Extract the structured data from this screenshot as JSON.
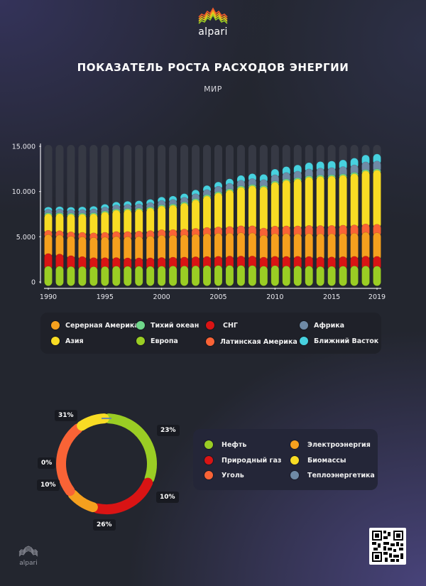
{
  "brand": {
    "name": "alpari",
    "footer_name": "alpari"
  },
  "header": {
    "title": "ПОКАЗАТЕЛЬ РОСТА РАСХОДОВ ЭНЕРГИИ",
    "subtitle": "МИР"
  },
  "colors": {
    "europe": "#9acd24",
    "cis": "#d91414",
    "north_america": "#f5a01e",
    "latin_america": "#f96336",
    "asia": "#f8dc24",
    "pacific": "#6fd78a",
    "africa": "#6f8aa5",
    "middle_east": "#47d1df",
    "track": "#363944"
  },
  "legend_regions": [
    {
      "label": "Серерная Америка",
      "key": "north_america",
      "color": "#f5a01e"
    },
    {
      "label": "Азия",
      "key": "asia",
      "color": "#f8dc24"
    },
    {
      "label": "Тихий океан",
      "key": "pacific",
      "color": "#6fd78a"
    },
    {
      "label": "Европа",
      "key": "europe",
      "color": "#9acd24"
    },
    {
      "label": "СНГ",
      "key": "cis",
      "color": "#d91414"
    },
    {
      "label": "Латинская Америка",
      "key": "latin_america",
      "color": "#f96336"
    },
    {
      "label": "Африка",
      "key": "africa",
      "color": "#6f8aa5"
    },
    {
      "label": "Ближний Васток",
      "key": "middle_east",
      "color": "#47d1df"
    }
  ],
  "legend_sources": [
    {
      "label": "Нефть",
      "color": "#9acd24"
    },
    {
      "label": "Природный газ",
      "color": "#d91414"
    },
    {
      "label": "Уголь",
      "color": "#f96336"
    },
    {
      "label": "Электроэнергия",
      "color": "#f5a01e"
    },
    {
      "label": "Биомассы",
      "color": "#f8dc24"
    },
    {
      "label": "Теплоэнергетика",
      "color": "#6f8aa5"
    }
  ],
  "chart_data": [
    {
      "type": "bar",
      "stacked": true,
      "title": "ПОКАЗАТЕЛЬ РОСТА РАСХОДОВ ЭНЕРГИИ",
      "subtitle": "МИР",
      "xlabel": "",
      "ylabel": "",
      "ylim": [
        0,
        15000
      ],
      "yticks": [
        0,
        5000,
        10000,
        15000
      ],
      "ytick_labels": [
        "0",
        "5.000",
        "10.000",
        "15.000"
      ],
      "xtick_labels": [
        "1990",
        "1995",
        "2000",
        "2005",
        "2010",
        "2015",
        "2019"
      ],
      "categories": [
        "1990",
        "1991",
        "1992",
        "1993",
        "1994",
        "1995",
        "1996",
        "1997",
        "1998",
        "1999",
        "2000",
        "2001",
        "2002",
        "2003",
        "2004",
        "2005",
        "2006",
        "2007",
        "2008",
        "2009",
        "2010",
        "2011",
        "2012",
        "2013",
        "2014",
        "2015",
        "2016",
        "2017",
        "2018",
        "2019"
      ],
      "series": [
        {
          "name": "Европа",
          "key": "europe",
          "values": [
            1750,
            1750,
            1720,
            1720,
            1700,
            1720,
            1760,
            1740,
            1750,
            1740,
            1760,
            1780,
            1780,
            1800,
            1820,
            1830,
            1840,
            1840,
            1830,
            1760,
            1820,
            1780,
            1780,
            1770,
            1720,
            1740,
            1760,
            1780,
            1780,
            1760
          ]
        },
        {
          "name": "СНГ",
          "key": "cis",
          "values": [
            1400,
            1350,
            1200,
            1100,
            1000,
            980,
            950,
            930,
            920,
            940,
            960,
            970,
            980,
            1000,
            1010,
            1020,
            1040,
            1040,
            1050,
            990,
            1030,
            1060,
            1070,
            1060,
            1060,
            1040,
            1050,
            1060,
            1090,
            1080
          ]
        },
        {
          "name": "Серерная Америка",
          "key": "north_america",
          "values": [
            2100,
            2100,
            2150,
            2180,
            2220,
            2260,
            2320,
            2340,
            2360,
            2400,
            2450,
            2420,
            2460,
            2480,
            2520,
            2540,
            2530,
            2570,
            2540,
            2420,
            2500,
            2510,
            2480,
            2530,
            2560,
            2560,
            2560,
            2560,
            2630,
            2610
          ]
        },
        {
          "name": "Латинская Америка",
          "key": "latin_america",
          "values": [
            470,
            480,
            490,
            500,
            520,
            540,
            560,
            580,
            600,
            610,
            620,
            630,
            640,
            660,
            690,
            710,
            740,
            770,
            800,
            800,
            840,
            860,
            880,
            900,
            910,
            920,
            920,
            920,
            930,
            940
          ]
        },
        {
          "name": "Азия",
          "key": "asia",
          "values": [
            1820,
            1880,
            1940,
            2000,
            2100,
            2240,
            2360,
            2420,
            2420,
            2500,
            2620,
            2700,
            2860,
            3150,
            3480,
            3760,
            4020,
            4280,
            4430,
            4560,
            4840,
            5050,
            5180,
            5350,
            5440,
            5460,
            5520,
            5660,
            5860,
            5980
          ]
        },
        {
          "name": "Тихий океан",
          "key": "pacific",
          "values": [
            120,
            120,
            120,
            120,
            125,
            125,
            130,
            130,
            130,
            130,
            135,
            135,
            135,
            135,
            140,
            140,
            140,
            140,
            140,
            140,
            145,
            145,
            145,
            145,
            145,
            145,
            145,
            145,
            145,
            145
          ]
        },
        {
          "name": "Африка",
          "key": "africa",
          "values": [
            390,
            400,
            400,
            410,
            420,
            430,
            450,
            460,
            470,
            480,
            490,
            500,
            520,
            540,
            570,
            590,
            610,
            630,
            650,
            660,
            690,
            710,
            730,
            750,
            770,
            790,
            810,
            830,
            850,
            870
          ]
        },
        {
          "name": "Ближний Васток",
          "key": "middle_east",
          "values": [
            250,
            260,
            270,
            290,
            300,
            310,
            320,
            330,
            340,
            350,
            370,
            380,
            400,
            420,
            440,
            470,
            500,
            520,
            550,
            580,
            620,
            650,
            680,
            700,
            720,
            730,
            740,
            750,
            760,
            770
          ]
        }
      ],
      "legend": [
        "Серерная Америка",
        "Азия",
        "Тихий океан",
        "Европа",
        "СНГ",
        "Латинская Америка",
        "Африка",
        "Ближний Васток"
      ],
      "legend_position": "bottom",
      "grid": false
    },
    {
      "type": "pie",
      "donut": true,
      "title": "",
      "categories": [
        "Нефть",
        "Природный газ",
        "Электроэнергия",
        "Уголь",
        "Биомассы",
        "Теплоэнергетика"
      ],
      "values": [
        31,
        23,
        10,
        26,
        10,
        0
      ],
      "labels": [
        "31%",
        "23%",
        "10%",
        "26%",
        "10%",
        "0%"
      ],
      "legend_position": "right"
    }
  ]
}
